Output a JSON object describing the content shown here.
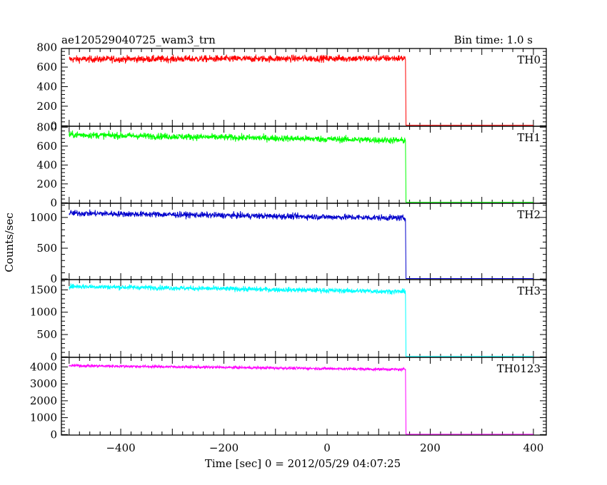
{
  "chart_data": {
    "type": "line",
    "title": "ae120529040725_wam3_trn",
    "subtitle": "Bin time: 1.0 s",
    "xlabel": "Time [sec] 0 = 2012/05/29 04:07:25",
    "ylabel": "Counts/sec",
    "xlim": [
      -515,
      425
    ],
    "x_ticks": [
      -400,
      -200,
      0,
      200,
      400
    ],
    "x_tick_labels": [
      "−400",
      "−200",
      "0",
      "200",
      "400"
    ],
    "x_start": -500,
    "x_drop": 152,
    "x_end": 400,
    "grid": false,
    "panels": [
      {
        "name": "TH0",
        "color": "#ff0000",
        "ylim": [
          -5,
          790
        ],
        "y_ticks": [
          0,
          200,
          400,
          600,
          800
        ],
        "y_tick_labels": [
          "0",
          "200",
          "400",
          "600",
          "800"
        ],
        "level_start": 680,
        "level_end": 690,
        "noise": 25,
        "post_drop": 5
      },
      {
        "name": "TH1",
        "color": "#00ff00",
        "ylim": [
          -5,
          810
        ],
        "y_ticks": [
          0,
          200,
          400,
          600,
          800
        ],
        "y_tick_labels": [
          "0",
          "200",
          "400",
          "600",
          "800"
        ],
        "level_start": 720,
        "level_end": 660,
        "noise": 25,
        "post_drop": 5
      },
      {
        "name": "TH2",
        "color": "#0000cc",
        "ylim": [
          -10,
          1230
        ],
        "y_ticks": [
          0,
          500,
          1000
        ],
        "y_tick_labels": [
          "0",
          "500",
          "1000"
        ],
        "level_start": 1070,
        "level_end": 990,
        "noise": 35,
        "post_drop": 8
      },
      {
        "name": "TH3",
        "color": "#00ffff",
        "ylim": [
          -10,
          1730
        ],
        "y_ticks": [
          0,
          500,
          1000,
          1500
        ],
        "y_tick_labels": [
          "0",
          "500",
          "1000",
          "1500"
        ],
        "level_start": 1580,
        "level_end": 1460,
        "noise": 40,
        "post_drop": 10
      },
      {
        "name": "TH0123",
        "color": "#ff00ff",
        "ylim": [
          -30,
          4570
        ],
        "y_ticks": [
          0,
          1000,
          2000,
          3000,
          4000
        ],
        "y_tick_labels": [
          "0",
          "1000",
          "2000",
          "3000",
          "4000"
        ],
        "level_start": 4080,
        "level_end": 3850,
        "noise": 60,
        "post_drop": 20
      }
    ]
  }
}
